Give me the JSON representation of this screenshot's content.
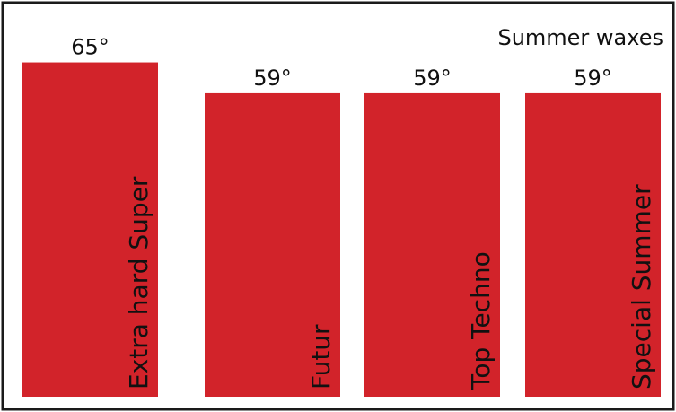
{
  "chart_data": {
    "type": "bar",
    "title": "Summer waxes",
    "categories": [
      "Extra hard Super",
      "Futur",
      "Top Techno",
      "Special Summer"
    ],
    "values": [
      65,
      59,
      59,
      59
    ],
    "value_labels": [
      "65°",
      "59°",
      "59°",
      "59°"
    ],
    "xlabel": "",
    "ylabel": "",
    "grid": false,
    "legend": "none",
    "colors": {
      "bar": "#d2232a",
      "border": "#1a1a1a",
      "background": "#ffffff",
      "text": "#111111"
    }
  }
}
